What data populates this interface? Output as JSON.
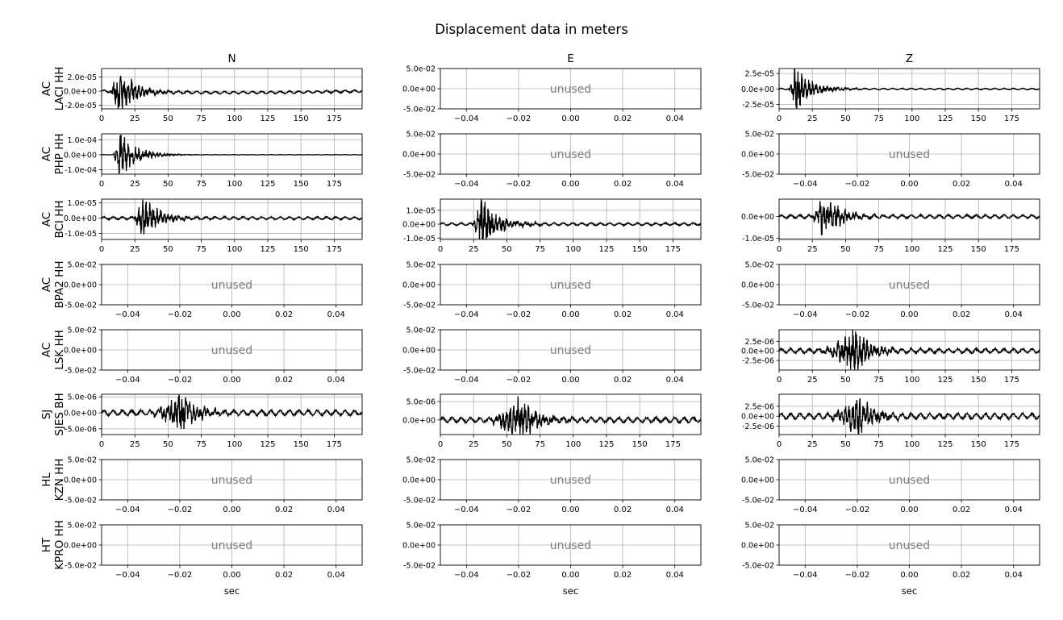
{
  "title": "Displacement data in meters",
  "chart_data": {
    "type": "line",
    "title": "Displacement data in meters",
    "columns": [
      "N",
      "E",
      "Z"
    ],
    "xlabel": "sec",
    "grid": true,
    "unused_label": "unused",
    "rows": [
      {
        "label": "AC\nLACI HH",
        "panels": [
          {
            "used": true,
            "yticks": [
              "2.0e-05",
              "0.0e+00",
              "-2.0e-05"
            ],
            "ytick_values": [
              2e-05,
              0,
              -2e-05
            ],
            "ylim": [
              -2.5e-05,
              3.2e-05
            ],
            "xlim": [
              0,
              196
            ],
            "xticks": [
              "0",
              "25",
              "50",
              "75",
              "100",
              "125",
              "150",
              "175"
            ],
            "event_start": 5,
            "event_peak": 12,
            "peak_amplitude": 3e-05,
            "background": 1.5e-06,
            "drift": -2e-06
          },
          {
            "used": false,
            "yticks": [
              "5.0e-02",
              "0.0e+00",
              "-5.0e-02"
            ],
            "xticks": [
              "−0.04",
              "−0.02",
              "0.00",
              "0.02",
              "0.04"
            ]
          },
          {
            "used": true,
            "yticks": [
              "2.5e-05",
              "0.0e+00",
              "-2.5e-05"
            ],
            "ytick_values": [
              2.5e-05,
              0,
              -2.5e-05
            ],
            "ylim": [
              -3.2e-05,
              3.3e-05
            ],
            "xlim": [
              0,
              196
            ],
            "xticks": [
              "0",
              "25",
              "50",
              "75",
              "100",
              "125",
              "150",
              "175"
            ],
            "event_start": 6,
            "event_peak": 12,
            "peak_amplitude": 3e-05,
            "background": 1e-06,
            "drift": 0
          }
        ]
      },
      {
        "label": "AC\nPHP HH",
        "panels": [
          {
            "used": true,
            "yticks": [
              "1.0e-04",
              "0.0e+00",
              "-1.0e-04"
            ],
            "ytick_values": [
              0.0001,
              0,
              -0.0001
            ],
            "ylim": [
              -0.00013,
              0.00014
            ],
            "xlim": [
              0,
              196
            ],
            "xticks": [
              "0",
              "25",
              "50",
              "75",
              "100",
              "125",
              "150",
              "175"
            ],
            "event_start": 8,
            "event_peak": 13,
            "peak_amplitude": 0.000135,
            "background": 1e-06,
            "drift": 0
          },
          {
            "used": false,
            "yticks": [
              "5.0e-02",
              "0.0e+00",
              "-5.0e-02"
            ],
            "xticks": [
              "−0.04",
              "−0.02",
              "0.00",
              "0.02",
              "0.04"
            ]
          },
          {
            "used": false,
            "yticks": [
              "5.0e-02",
              "0.0e+00",
              "-5.0e-02"
            ],
            "xticks": [
              "−0.04",
              "−0.02",
              "0.00",
              "0.02",
              "0.04"
            ]
          }
        ]
      },
      {
        "label": "AC\nBCI HH",
        "panels": [
          {
            "used": true,
            "yticks": [
              "1.0e-05",
              "0.0e+00",
              "-1.0e-05"
            ],
            "ytick_values": [
              1e-05,
              0,
              -1e-05
            ],
            "ylim": [
              -1.4e-05,
              1.25e-05
            ],
            "xlim": [
              0,
              196
            ],
            "xticks": [
              "0",
              "25",
              "50",
              "75",
              "100",
              "125",
              "150",
              "175"
            ],
            "event_start": 22,
            "event_peak": 31,
            "peak_amplitude": 1.2e-05,
            "background": 8e-07,
            "drift": 0
          },
          {
            "used": true,
            "yticks": [
              "1.0e-05",
              "0.0e+00",
              "-1.0e-05"
            ],
            "ytick_values": [
              1e-05,
              0,
              -1e-05
            ],
            "ylim": [
              -1.1e-05,
              1.8e-05
            ],
            "xlim": [
              0,
              196
            ],
            "xticks": [
              "0",
              "25",
              "50",
              "75",
              "100",
              "125",
              "150",
              "175"
            ],
            "event_start": 22,
            "event_peak": 31,
            "peak_amplitude": 1.6e-05,
            "background": 8e-07,
            "drift": 0
          },
          {
            "used": true,
            "yticks": [
              "0.0e+00",
              "-1.0e-05"
            ],
            "ytick_values": [
              0,
              -1e-05
            ],
            "ylim": [
              -1.05e-05,
              8e-06
            ],
            "xlim": [
              0,
              196
            ],
            "xticks": [
              "0",
              "25",
              "50",
              "75",
              "100",
              "125",
              "150",
              "175"
            ],
            "event_start": 22,
            "event_peak": 33,
            "peak_amplitude": 9e-06,
            "background": 7e-07,
            "drift": 0
          }
        ]
      },
      {
        "label": "AC\nBPA2 HH",
        "panels": [
          {
            "used": false,
            "yticks": [
              "5.0e-02",
              "0.0e+00",
              "-5.0e-02"
            ],
            "xticks": [
              "−0.04",
              "−0.02",
              "0.00",
              "0.02",
              "0.04"
            ]
          },
          {
            "used": false,
            "yticks": [
              "5.0e-02",
              "0.0e+00",
              "-5.0e-02"
            ],
            "xticks": [
              "−0.04",
              "−0.02",
              "0.00",
              "0.02",
              "0.04"
            ]
          },
          {
            "used": false,
            "yticks": [
              "5.0e-02",
              "0.0e+00",
              "-5.0e-02"
            ],
            "xticks": [
              "−0.04",
              "−0.02",
              "0.00",
              "0.02",
              "0.04"
            ]
          }
        ]
      },
      {
        "label": "AC\nLSK HH",
        "panels": [
          {
            "used": false,
            "yticks": [
              "5.0e-02",
              "0.0e+00",
              "-5.0e-02"
            ],
            "xticks": [
              "−0.04",
              "−0.02",
              "0.00",
              "0.02",
              "0.04"
            ]
          },
          {
            "used": false,
            "yticks": [
              "5.0e-02",
              "0.0e+00",
              "-5.0e-02"
            ],
            "xticks": [
              "−0.04",
              "−0.02",
              "0.00",
              "0.02",
              "0.04"
            ]
          },
          {
            "used": true,
            "yticks": [
              "2.5e-06",
              "0.0e+00",
              "-2.5e-06"
            ],
            "ytick_values": [
              2.5e-06,
              0,
              -2.5e-06
            ],
            "ylim": [
              -5e-06,
              5.5e-06
            ],
            "xlim": [
              0,
              196
            ],
            "xticks": [
              "0",
              "25",
              "50",
              "75",
              "100",
              "125",
              "150",
              "175"
            ],
            "event_start": 25,
            "event_peak": 57,
            "peak_amplitude": 5e-06,
            "background": 5e-07,
            "drift": 0
          }
        ]
      },
      {
        "label": "SJ\nSJES BH",
        "panels": [
          {
            "used": true,
            "yticks": [
              "5.0e-06",
              "0.0e+00",
              "-5.0e-06"
            ],
            "ytick_values": [
              5e-06,
              0,
              -5e-06
            ],
            "ylim": [
              -6.8e-06,
              5.8e-06
            ],
            "xlim": [
              0,
              196
            ],
            "xticks": [
              "0",
              "25",
              "50",
              "75",
              "100",
              "125",
              "150",
              "175"
            ],
            "event_start": 30,
            "event_peak": 60,
            "peak_amplitude": 5.5e-06,
            "background": 7e-07,
            "drift": 0
          },
          {
            "used": true,
            "yticks": [
              "5.0e-06",
              "0.0e+00"
            ],
            "ytick_values": [
              5e-06,
              0
            ],
            "ylim": [
              -4e-06,
              7e-06
            ],
            "xlim": [
              0,
              196
            ],
            "xticks": [
              "0",
              "25",
              "50",
              "75",
              "100",
              "125",
              "150",
              "175"
            ],
            "event_start": 30,
            "event_peak": 60,
            "peak_amplitude": 5.5e-06,
            "background": 6e-07,
            "drift": 0
          },
          {
            "used": true,
            "yticks": [
              "2.5e-06",
              "0.0e+00",
              "-2.5e-06"
            ],
            "ytick_values": [
              2.5e-06,
              0,
              -2.5e-06
            ],
            "ylim": [
              -4.6e-06,
              5.5e-06
            ],
            "xlim": [
              0,
              196
            ],
            "xticks": [
              "0",
              "25",
              "50",
              "75",
              "100",
              "125",
              "150",
              "175"
            ],
            "event_start": 30,
            "event_peak": 60,
            "peak_amplitude": 4.5e-06,
            "background": 6e-07,
            "drift": 0
          }
        ]
      },
      {
        "label": "HL\nKZN HH",
        "panels": [
          {
            "used": false,
            "yticks": [
              "5.0e-02",
              "0.0e+00",
              "-5.0e-02"
            ],
            "xticks": [
              "−0.04",
              "−0.02",
              "0.00",
              "0.02",
              "0.04"
            ]
          },
          {
            "used": false,
            "yticks": [
              "5.0e-02",
              "0.0e+00",
              "-5.0e-02"
            ],
            "xticks": [
              "−0.04",
              "−0.02",
              "0.00",
              "0.02",
              "0.04"
            ]
          },
          {
            "used": false,
            "yticks": [
              "5.0e-02",
              "0.0e+00",
              "-5.0e-02"
            ],
            "xticks": [
              "−0.04",
              "−0.02",
              "0.00",
              "0.02",
              "0.04"
            ]
          }
        ]
      },
      {
        "label": "HT\nKPRO HH",
        "panels": [
          {
            "used": false,
            "yticks": [
              "5.0e-02",
              "0.0e+00",
              "-5.0e-02"
            ],
            "xticks": [
              "−0.04",
              "−0.02",
              "0.00",
              "0.02",
              "0.04"
            ]
          },
          {
            "used": false,
            "yticks": [
              "5.0e-02",
              "0.0e+00",
              "-5.0e-02"
            ],
            "xticks": [
              "−0.04",
              "−0.02",
              "0.00",
              "0.02",
              "0.04"
            ]
          },
          {
            "used": false,
            "yticks": [
              "5.0e-02",
              "0.0e+00",
              "-5.0e-02"
            ],
            "xticks": [
              "−0.04",
              "−0.02",
              "0.00",
              "0.02",
              "0.04"
            ]
          }
        ]
      }
    ]
  }
}
